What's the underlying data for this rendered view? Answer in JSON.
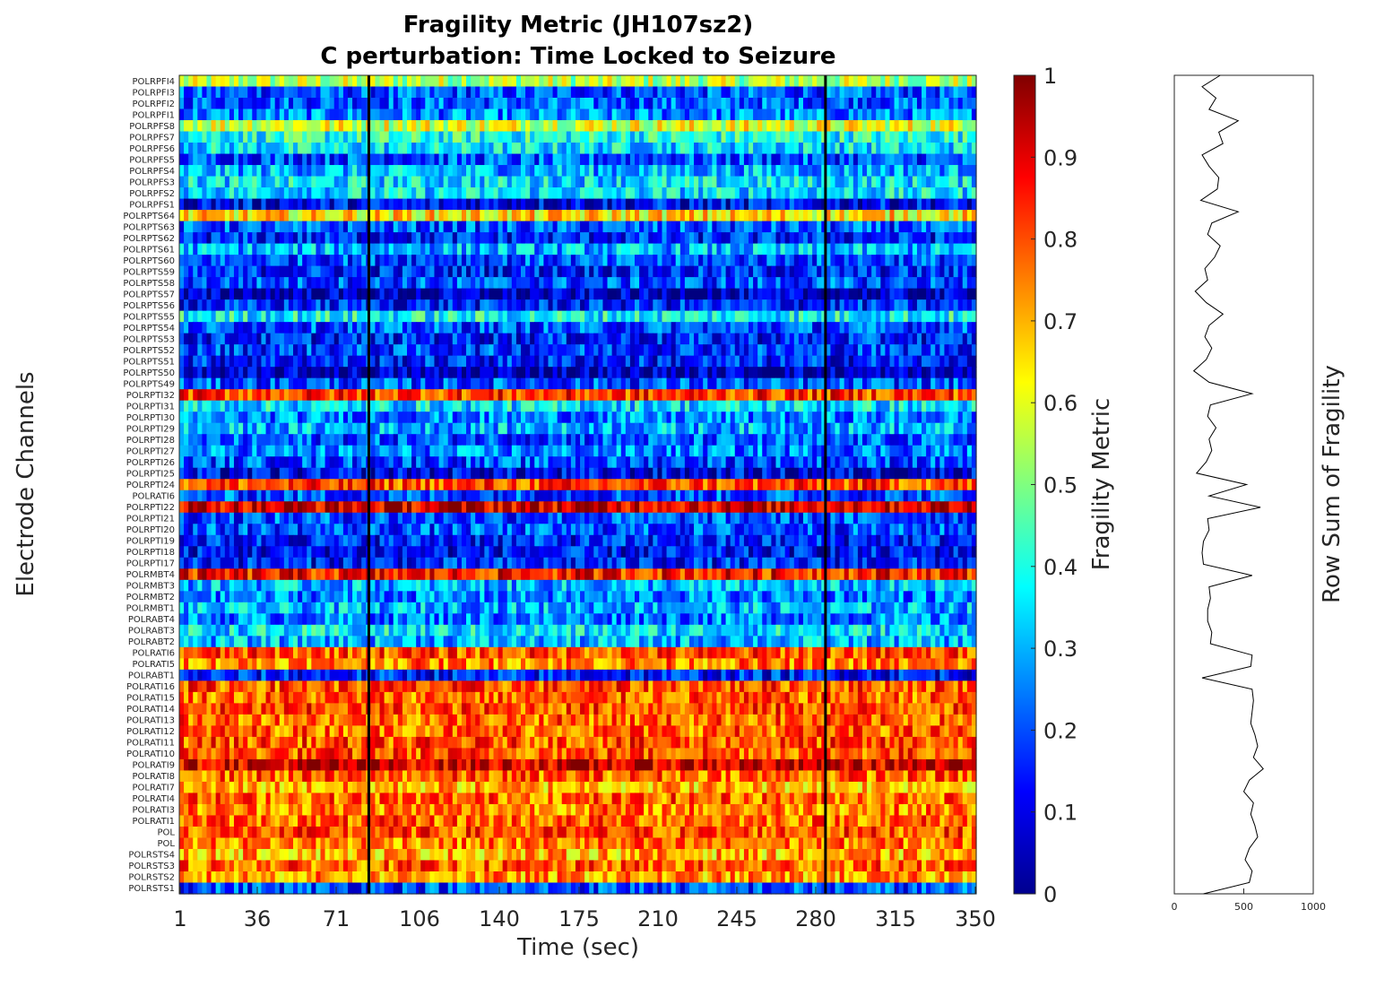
{
  "chart_data": [
    {
      "type": "heatmap",
      "title": "Fragility Metric (JH107sz2)",
      "subtitle": "C perturbation:  Time Locked to Seizure",
      "xlabel": "Time (sec)",
      "ylabel": "Electrode Channels",
      "xlim": [
        1,
        350
      ],
      "x_ticks": [
        "1",
        "36",
        "71",
        "106",
        "140",
        "175",
        "210",
        "245",
        "280",
        "315",
        "350"
      ],
      "markers_x_sec": [
        84,
        284
      ],
      "channels": [
        "POLRPFI4",
        "POLRPFI3",
        "POLRPFI2",
        "POLRPFI1",
        "POLRPFS8",
        "POLRPFS7",
        "POLRPFS6",
        "POLRPFS5",
        "POLRPFS4",
        "POLRPFS3",
        "POLRPFS2",
        "POLRPFS1",
        "POLRPTS64",
        "POLRPTS63",
        "POLRPTS62",
        "POLRPTS61",
        "POLRPTS60",
        "POLRPTS59",
        "POLRPTS58",
        "POLRPTS57",
        "POLRPTS56",
        "POLRPTS55",
        "POLRPTS54",
        "POLRPTS53",
        "POLRPTS52",
        "POLRPTS51",
        "POLRPTS50",
        "POLRPTS49",
        "POLRPTI32",
        "POLRPTI31",
        "POLRPTI30",
        "POLRPTI29",
        "POLRPTI28",
        "POLRPTI27",
        "POLRPTI26",
        "POLRPTI25",
        "POLRPTI24",
        "POLRATI6",
        "POLRPTI22",
        "POLRPTI21",
        "POLRPTI20",
        "POLRPTI19",
        "POLRPTI18",
        "POLRPTI17",
        "POLRMBT4",
        "POLRMBT3",
        "POLRMBT2",
        "POLRMBT1",
        "POLRABT4",
        "POLRABT3",
        "POLRABT2",
        "POLRATI6",
        "POLRATI5",
        "POLRABT1",
        "POLRATI16",
        "POLRATI15",
        "POLRATI14",
        "POLRATI13",
        "POLRATI12",
        "POLRATI11",
        "POLRATI10",
        "POLRATI9",
        "POLRATI8",
        "POLRATI7",
        "POLRATI4",
        "POLRATI3",
        "POLRATI1",
        "POL",
        "POL",
        "POLRSTS4",
        "POLRSTS3",
        "POLRSTS2",
        "POLRSTS1"
      ],
      "channel_mean_fragility": [
        0.55,
        0.2,
        0.22,
        0.25,
        0.6,
        0.4,
        0.35,
        0.2,
        0.3,
        0.35,
        0.35,
        0.12,
        0.65,
        0.2,
        0.15,
        0.3,
        0.2,
        0.15,
        0.2,
        0.05,
        0.15,
        0.38,
        0.2,
        0.15,
        0.18,
        0.15,
        0.05,
        0.2,
        0.82,
        0.35,
        0.25,
        0.3,
        0.2,
        0.25,
        0.2,
        0.1,
        0.8,
        0.2,
        0.92,
        0.2,
        0.2,
        0.15,
        0.12,
        0.15,
        0.85,
        0.3,
        0.25,
        0.3,
        0.25,
        0.35,
        0.3,
        0.8,
        0.75,
        0.15,
        0.8,
        0.78,
        0.8,
        0.78,
        0.78,
        0.8,
        0.8,
        0.92,
        0.78,
        0.7,
        0.78,
        0.75,
        0.78,
        0.8,
        0.75,
        0.7,
        0.78,
        0.72,
        0.2
      ],
      "colorbar": {
        "label": "Fragility Metric",
        "colormap": "jet",
        "range": [
          0,
          1
        ],
        "ticks": [
          "0",
          "0.1",
          "0.2",
          "0.3",
          "0.4",
          "0.5",
          "0.6",
          "0.7",
          "0.8",
          "0.9",
          "1"
        ]
      }
    },
    {
      "type": "line",
      "xlabel": "",
      "ylabel": "Row Sum of Fragility",
      "xlim": [
        0,
        1000
      ],
      "x_ticks": [
        "0",
        "500",
        "1000"
      ],
      "row_sums": [
        330,
        200,
        300,
        250,
        460,
        320,
        350,
        200,
        250,
        320,
        310,
        190,
        460,
        270,
        240,
        330,
        290,
        220,
        240,
        150,
        230,
        350,
        250,
        220,
        270,
        230,
        140,
        250,
        560,
        260,
        240,
        300,
        250,
        270,
        230,
        160,
        520,
        250,
        620,
        240,
        250,
        210,
        200,
        210,
        560,
        250,
        260,
        240,
        240,
        270,
        260,
        560,
        550,
        200,
        560,
        570,
        560,
        550,
        580,
        600,
        570,
        640,
        540,
        500,
        570,
        550,
        580,
        600,
        540,
        510,
        560,
        540,
        210
      ]
    }
  ]
}
